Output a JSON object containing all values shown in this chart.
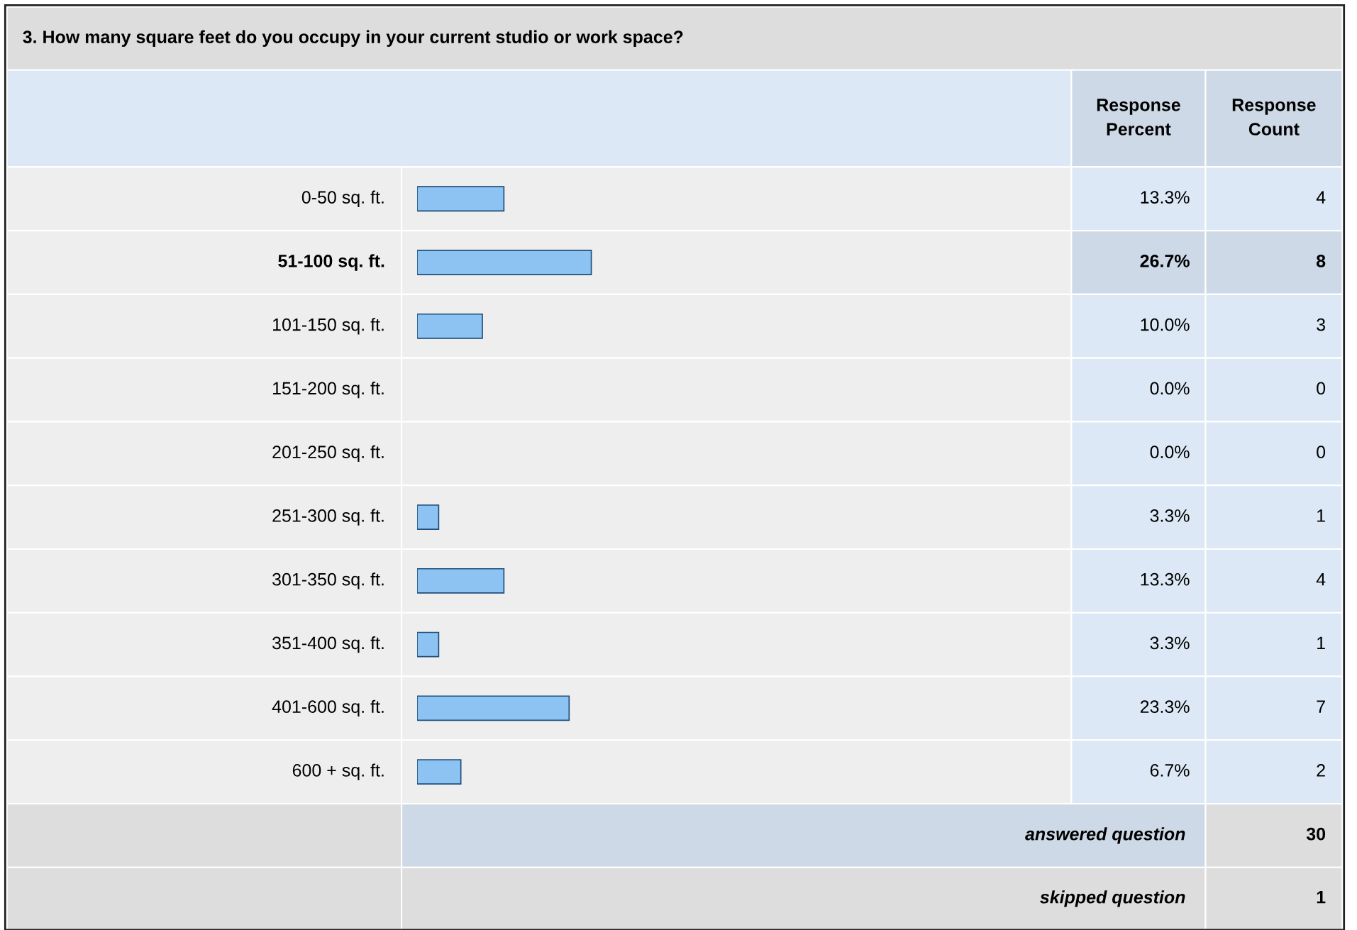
{
  "chart_data": {
    "type": "bar",
    "orientation": "horizontal",
    "title": "3. How many square feet do you occupy in your current studio or work space?",
    "categories": [
      "0-50 sq. ft.",
      "51-100 sq. ft.",
      "101-150 sq. ft.",
      "151-200 sq. ft.",
      "201-250 sq. ft.",
      "251-300 sq. ft.",
      "301-350 sq. ft.",
      "351-400 sq. ft.",
      "401-600 sq. ft.",
      "600 + sq. ft."
    ],
    "values": [
      13.3,
      26.7,
      10.0,
      0.0,
      0.0,
      3.3,
      13.3,
      3.3,
      23.3,
      6.7
    ],
    "value_labels": [
      "13.3%",
      "26.7%",
      "10.0%",
      "0.0%",
      "0.0%",
      "3.3%",
      "13.3%",
      "3.3%",
      "23.3%",
      "6.7%"
    ],
    "color": "#8cc3f2",
    "annotations": [
      "Response\nPercent",
      "Response\nCount",
      "4",
      "8",
      "3",
      "0",
      "0",
      "1",
      "4",
      "1",
      "7",
      "2",
      "answered question",
      "30",
      "skipped question",
      "1"
    ]
  }
}
